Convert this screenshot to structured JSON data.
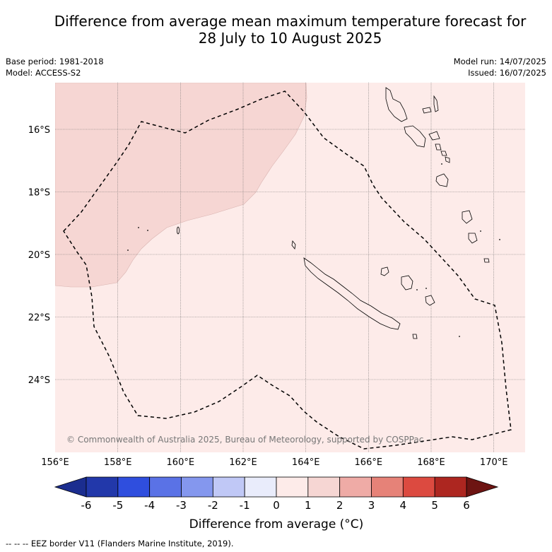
{
  "title": {
    "line1": "Difference from average mean maximum temperature forecast for",
    "line2": "28 July to 10 August 2025"
  },
  "meta": {
    "base_period": "Base period: 1981-2018",
    "model": "Model: ACCESS-S2",
    "model_run": "Model run: 14/07/2025",
    "issued": "Issued: 16/07/2025"
  },
  "map": {
    "lon_labels": [
      "156°E",
      "158°E",
      "160°E",
      "162°E",
      "164°E",
      "166°E",
      "168°E",
      "170°E"
    ],
    "lat_labels": [
      "16°S",
      "18°S",
      "20°S",
      "22°S",
      "24°S"
    ],
    "copyright": "© Commonwealth of Australia 2025, Bureau of Meteorology, supported by COSPPac",
    "colors": {
      "ocean_0_1": "#fdebe9",
      "anomaly_1_2": "#f6d6d3",
      "grid": "#666666"
    }
  },
  "colorbar": {
    "ticks": [
      "-6",
      "-5",
      "-4",
      "-3",
      "-2",
      "-1",
      "0",
      "1",
      "2",
      "3",
      "4",
      "5",
      "6"
    ],
    "colors": [
      "#1b2d8f",
      "#2238aa",
      "#2f4ede",
      "#5a72e6",
      "#8497ee",
      "#c0c8f6",
      "#e9ecfb",
      "#fdebe9",
      "#f6d6d3",
      "#efaba6",
      "#e68278",
      "#dc4a40",
      "#ad2620",
      "#6d1412"
    ],
    "label": "Difference from average (°C)"
  },
  "footer": "-- -- -- EEZ border V11 (Flanders Marine Institute, 2019)."
}
